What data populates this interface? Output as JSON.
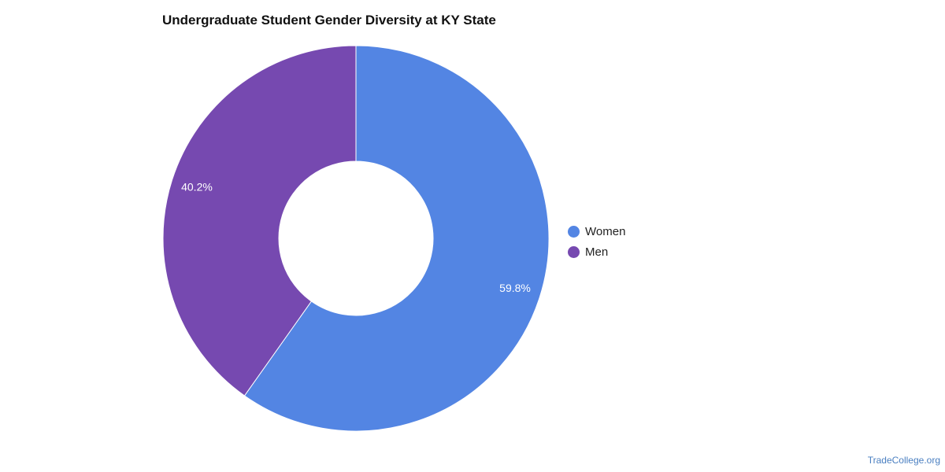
{
  "chart_data": {
    "type": "pie",
    "title": "Undergraduate Student Gender Diversity at KY State",
    "series": [
      {
        "name": "Women",
        "value": 59.8,
        "label": "59.8%",
        "color": "#5385E3"
      },
      {
        "name": "Men",
        "value": 40.2,
        "label": "40.2%",
        "color": "#7649B0"
      }
    ],
    "donut": true,
    "legend_position": "right"
  },
  "source": "TradeCollege.org"
}
